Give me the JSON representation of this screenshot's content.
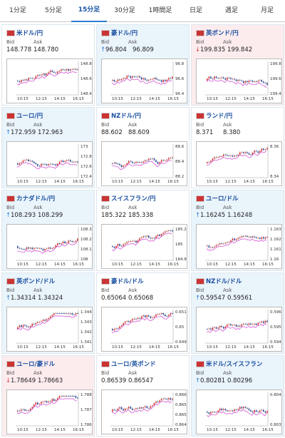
{
  "tabs": [
    "1分足",
    "5分足",
    "15分足",
    "30分足",
    "1時間足",
    "日足",
    "週足",
    "月足"
  ],
  "active_tab": 2,
  "labels": {
    "bid": "Bid",
    "ask": "Ask"
  },
  "xticks": [
    "10:15",
    "12:15",
    "14:15",
    "16:15"
  ],
  "cells": [
    {
      "name": "米ドル/円",
      "bid": "148.778",
      "ask": "148.780",
      "dir": null,
      "yticks": [
        "148.8",
        "148.6",
        "148.4"
      ]
    },
    {
      "name": "豪ドル/円",
      "bid": "96.804",
      "ask": "96.809",
      "dir": "up",
      "yticks": [
        "96.8",
        "96.6",
        "96.4"
      ]
    },
    {
      "name": "英ポンド/円",
      "bid": "199.835",
      "ask": "199.842",
      "dir": "down",
      "yticks": [
        "199.8",
        "199.6",
        "199.4"
      ]
    },
    {
      "name": "ユーロ/円",
      "bid": "172.959",
      "ask": "172.963",
      "dir": "up",
      "yticks": [
        "173",
        "172.8",
        "172.6",
        "172.4"
      ]
    },
    {
      "name": "NZドル/円",
      "bid": "88.602",
      "ask": "88.609",
      "dir": null,
      "yticks": [
        "88.6",
        "88.4",
        "88.2"
      ]
    },
    {
      "name": "ランド/円",
      "bid": "8.371",
      "ask": "8.380",
      "dir": null,
      "yticks": [
        "8.36",
        "8.34"
      ]
    },
    {
      "name": "カナダドル/円",
      "bid": "108.293",
      "ask": "108.299",
      "dir": "up",
      "yticks": [
        "108.3",
        "108.2",
        "108.1",
        "108"
      ]
    },
    {
      "name": "スイスフラン/円",
      "bid": "185.322",
      "ask": "185.338",
      "dir": null,
      "yticks": [
        "185.2",
        "185",
        "184.8"
      ]
    },
    {
      "name": "ユーロ/ドル",
      "bid": "1.16245",
      "ask": "1.16248",
      "dir": "up",
      "yticks": [
        "1.163",
        "1.162",
        "1.161",
        "1.16"
      ]
    },
    {
      "name": "英ポンド/ドル",
      "bid": "1.34314",
      "ask": "1.34324",
      "dir": "up",
      "yticks": [
        "1.344",
        "1.343",
        "1.342",
        "1.341"
      ]
    },
    {
      "name": "豪ドル/ドル",
      "bid": "0.65064",
      "ask": "0.65068",
      "dir": null,
      "yticks": [
        "0.651",
        "0.65",
        "0.649"
      ]
    },
    {
      "name": "NZドル/ドル",
      "bid": "0.59547",
      "ask": "0.59561",
      "dir": "up",
      "yticks": [
        "0.596",
        "0.595",
        "0.594"
      ]
    },
    {
      "name": "ユーロ/豪ドル",
      "bid": "1.78649",
      "ask": "1.78663",
      "dir": "down",
      "yticks": [
        "1.788",
        "1.787",
        "1.786"
      ]
    },
    {
      "name": "ユーロ/英ポンド",
      "bid": "0.86539",
      "ask": "0.86547",
      "dir": null,
      "yticks": [
        "0.866",
        "0.8655",
        "0.865",
        "0.8645"
      ]
    },
    {
      "name": "米ドル/スイスフラン",
      "bid": "0.80281",
      "ask": "0.80296",
      "dir": "up",
      "yticks": [
        "0.804",
        "0.803"
      ]
    }
  ]
}
